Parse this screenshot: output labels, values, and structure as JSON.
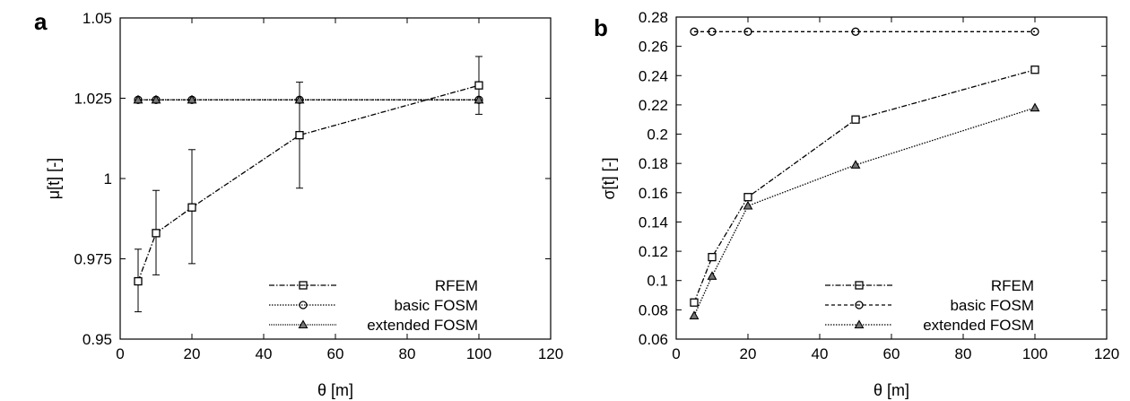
{
  "chart_data": [
    {
      "type": "line",
      "panel_label": "a",
      "xlabel": "θ [m]",
      "ylabel": "μ[t] [-]",
      "xlim": [
        0,
        120
      ],
      "ylim": [
        0.95,
        1.05
      ],
      "xticks": [
        "0",
        "20",
        "40",
        "60",
        "80",
        "100",
        "120"
      ],
      "yticks": [
        "0.95",
        "0.975",
        "1",
        "1.025",
        "1.05"
      ],
      "legend_position": "bottom-right",
      "series": [
        {
          "name": "RFEM",
          "marker": "square",
          "dash": "dash-dot",
          "x": [
            5,
            10,
            20,
            50,
            100
          ],
          "y": [
            0.968,
            0.983,
            0.991,
            1.0135,
            1.029
          ],
          "err_low": [
            0.9585,
            0.97,
            0.9735,
            0.997,
            1.02
          ],
          "err_high": [
            0.978,
            0.9963,
            1.009,
            1.03,
            1.038
          ]
        },
        {
          "name": "basic FOSM",
          "marker": "circle",
          "dash": "dotted",
          "x": [
            5,
            10,
            20,
            50,
            100
          ],
          "y": [
            1.0245,
            1.0245,
            1.0245,
            1.0245,
            1.0245
          ]
        },
        {
          "name": "extended FOSM",
          "marker": "triangle",
          "dash": "fine-dotted",
          "x": [
            5,
            10,
            20,
            50,
            100
          ],
          "y": [
            1.0245,
            1.0245,
            1.0245,
            1.0245,
            1.0245
          ]
        }
      ]
    },
    {
      "type": "line",
      "panel_label": "b",
      "xlabel": "θ [m]",
      "ylabel": "σ[t] [-]",
      "xlim": [
        0,
        120
      ],
      "ylim": [
        0.06,
        0.28
      ],
      "xticks": [
        "0",
        "20",
        "40",
        "60",
        "80",
        "100",
        "120"
      ],
      "yticks": [
        "0.06",
        "0.08",
        "0.1",
        "0.12",
        "0.14",
        "0.16",
        "0.18",
        "0.2",
        "0.22",
        "0.24",
        "0.26",
        "0.28"
      ],
      "legend_position": "bottom-right",
      "series": [
        {
          "name": "RFEM",
          "marker": "square",
          "dash": "dash-dot",
          "x": [
            5,
            10,
            20,
            50,
            100
          ],
          "y": [
            0.085,
            0.116,
            0.157,
            0.21,
            0.244
          ]
        },
        {
          "name": "basic FOSM",
          "marker": "circle",
          "dash": "dashed",
          "x": [
            5,
            10,
            20,
            50,
            100
          ],
          "y": [
            0.27,
            0.27,
            0.27,
            0.27,
            0.27
          ]
        },
        {
          "name": "extended FOSM",
          "marker": "triangle",
          "dash": "dotted",
          "x": [
            5,
            10,
            20,
            50,
            100
          ],
          "y": [
            0.076,
            0.103,
            0.151,
            0.179,
            0.218
          ]
        }
      ]
    }
  ]
}
